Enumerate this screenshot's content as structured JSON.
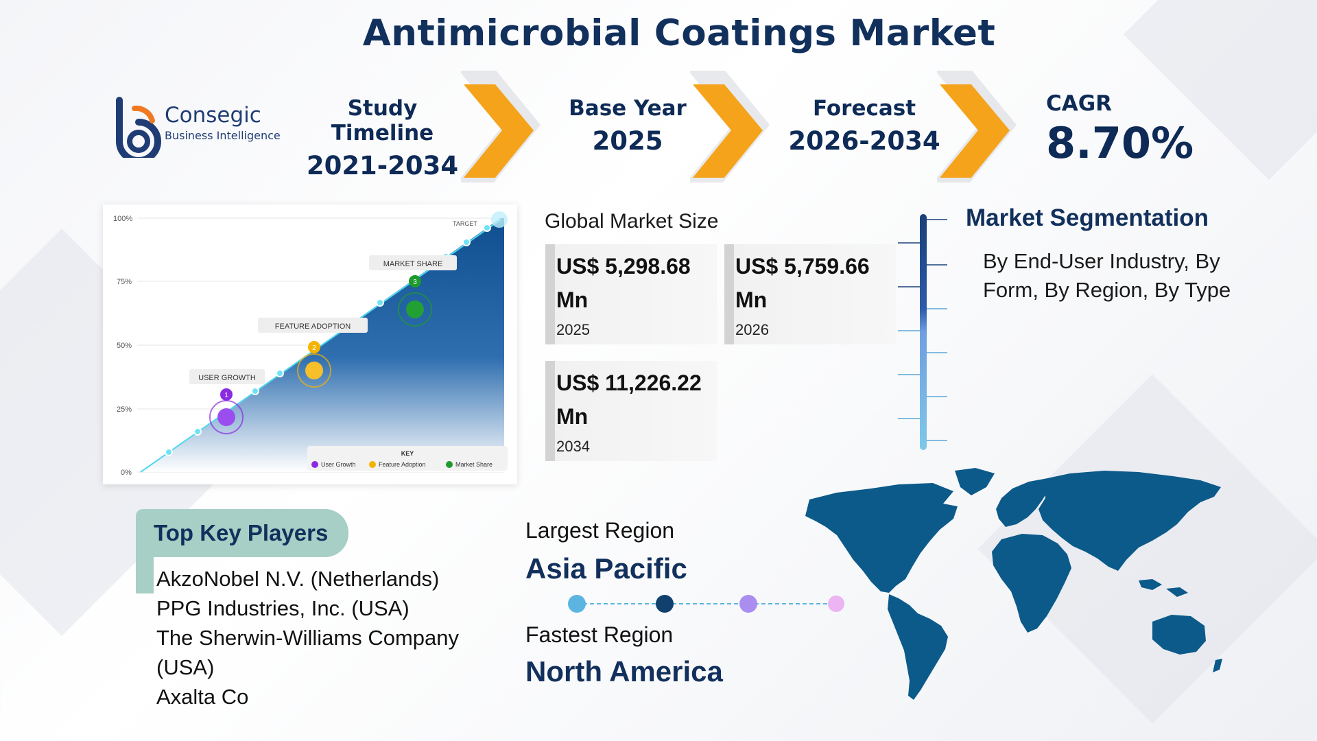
{
  "title": "Antimicrobial Coatings Market",
  "logo": {
    "name": "Consegic",
    "tagline": "Business Intelligence",
    "icon": "cb-logo-icon"
  },
  "stats": [
    {
      "label": "Study Timeline",
      "value": "2021-2034"
    },
    {
      "label": "Base Year",
      "value": "2025"
    },
    {
      "label": "Forecast",
      "value": "2026-2034"
    }
  ],
  "cagr": {
    "label": "CAGR",
    "value": "8.70%"
  },
  "growth_chart": {
    "y_ticks": [
      "100%",
      "75%",
      "50%",
      "25%",
      "0%"
    ],
    "target_label": "TARGET",
    "milestones": [
      {
        "num": "1",
        "label": "USER GROWTH",
        "color": "#8a2be2"
      },
      {
        "num": "2",
        "label": "FEATURE ADOPTION",
        "color": "#f5b301"
      },
      {
        "num": "3",
        "label": "MARKET SHARE",
        "color": "#1f9a2c"
      }
    ],
    "key_title": "KEY",
    "key_items": [
      "User Growth",
      "Feature Adoption",
      "Market Share"
    ]
  },
  "market_size": {
    "title": "Global Market Size",
    "entries": [
      {
        "value": "US$ 5,298.68",
        "unit": "Mn",
        "year": "2025"
      },
      {
        "value": "US$ 5,759.66",
        "unit": "Mn",
        "year": "2026"
      },
      {
        "value": "US$ 11,226.22",
        "unit": "Mn",
        "year": "2034"
      }
    ]
  },
  "segmentation": {
    "title": "Market Segmentation",
    "text": "By End-User Industry, By Form, By Region, By Type"
  },
  "key_players": {
    "title": "Top Key Players",
    "items": [
      "AkzoNobel N.V. (Netherlands)",
      "PPG Industries, Inc. (USA)",
      "The Sherwin-Williams Company (USA)",
      "Axalta Co"
    ]
  },
  "regions": {
    "largest_label": "Largest Region",
    "largest_value": "Asia Pacific",
    "fastest_label": "Fastest Region",
    "fastest_value": "North America",
    "dot_colors": [
      "#5bb5e0",
      "#12406e",
      "#a98ef0",
      "#ecb4f2"
    ]
  },
  "colors": {
    "accent": "#f5a31a",
    "navy": "#12305c",
    "map": "#0b5a8a",
    "chart_fill": "#1e5a9a"
  }
}
